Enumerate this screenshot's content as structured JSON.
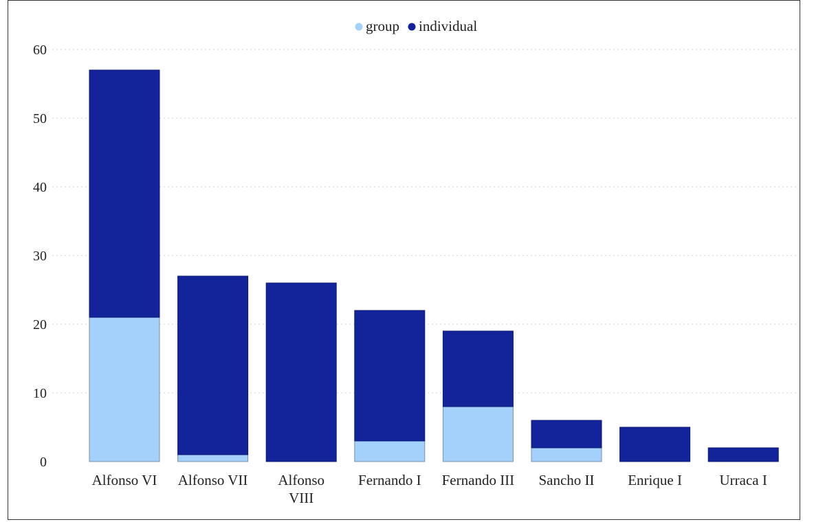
{
  "chart_data": {
    "type": "bar",
    "stacked": true,
    "categories": [
      [
        "Alfonso VI"
      ],
      [
        "Alfonso VII"
      ],
      [
        "Alfonso",
        "VIII"
      ],
      [
        "Fernando I"
      ],
      [
        "Fernando III"
      ],
      [
        "Sancho II"
      ],
      [
        "Enrique I"
      ],
      [
        "Urraca I"
      ]
    ],
    "series": [
      {
        "name": "group",
        "color": "#a3d1fb",
        "values": [
          21,
          1,
          0,
          3,
          8,
          2,
          0,
          0
        ]
      },
      {
        "name": "individual",
        "color": "#13239a",
        "values": [
          36,
          26,
          26,
          19,
          11,
          4,
          5,
          2
        ]
      }
    ],
    "ylim": [
      0,
      60
    ],
    "yticks": [
      "0",
      "10",
      "20",
      "30",
      "40",
      "50",
      "60"
    ],
    "title": "",
    "xlabel": "",
    "ylabel": "",
    "grid": true,
    "legend": "top-center"
  }
}
